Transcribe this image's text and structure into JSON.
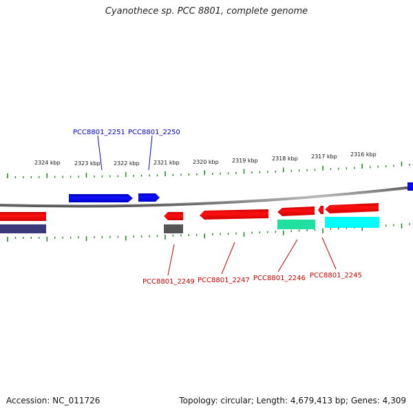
{
  "header": {
    "title": "Cyanothece sp. PCC 8801, complete genome"
  },
  "footer": {
    "accession": "Accession: NC_011726",
    "stats": "Topology: circular; Length: 4,679,413 bp; Genes: 4,309"
  },
  "scale_labels": [
    "2324 kbp",
    "2323 kbp",
    "2322 kbp",
    "2321 kbp",
    "2320 kbp",
    "2319 kbp",
    "2318 kbp",
    "2317 kbp",
    "2316 kbp"
  ],
  "genes_top": [
    {
      "id": "PCC8801_2251",
      "color": "#0000cc"
    },
    {
      "id": "PCC8801_2250",
      "color": "#0000cc"
    }
  ],
  "genes_bottom": [
    {
      "id": "PCC8801_2249",
      "color": "#cc0000"
    },
    {
      "id": "PCC8801_2247",
      "color": "#cc0000"
    },
    {
      "id": "PCC8801_2246",
      "color": "#cc0000"
    },
    {
      "id": "PCC8801_2245",
      "color": "#cc0000"
    }
  ],
  "colors": {
    "forward_gene": "#0000ff",
    "reverse_gene": "#ff0000",
    "backbone": "#808080",
    "tick": "#1e8c1e",
    "feature_teal": "#20e0a0",
    "feature_cyan": "#00ffff",
    "feature_grey": "#555555",
    "feature_navy": "#3a3a7a"
  }
}
